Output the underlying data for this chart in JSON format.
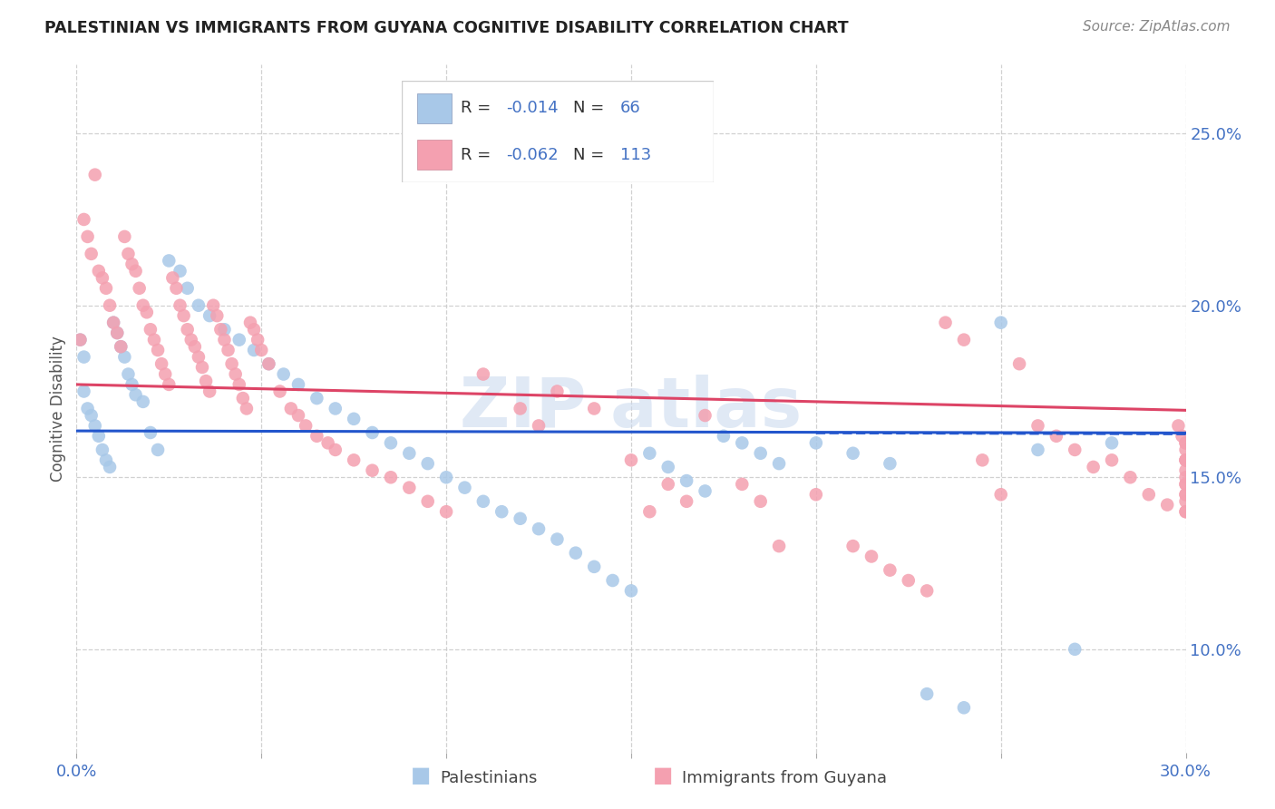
{
  "title": "PALESTINIAN VS IMMIGRANTS FROM GUYANA COGNITIVE DISABILITY CORRELATION CHART",
  "source": "Source: ZipAtlas.com",
  "ylabel": "Cognitive Disability",
  "xlim": [
    0.0,
    0.3
  ],
  "ylim": [
    0.07,
    0.27
  ],
  "yticks": [
    0.1,
    0.15,
    0.2,
    0.25
  ],
  "ytick_labels": [
    "10.0%",
    "15.0%",
    "20.0%",
    "25.0%"
  ],
  "xticks": [
    0.0,
    0.05,
    0.1,
    0.15,
    0.2,
    0.25,
    0.3
  ],
  "legend_R1": "-0.014",
  "legend_N1": "66",
  "legend_R2": "-0.062",
  "legend_N2": "113",
  "color_blue": "#a8c8e8",
  "color_pink": "#f4a0b0",
  "line_blue": "#2255cc",
  "line_pink": "#dd4466",
  "label1": "Palestinians",
  "label2": "Immigrants from Guyana",
  "blue_x": [
    0.001,
    0.002,
    0.002,
    0.003,
    0.004,
    0.005,
    0.006,
    0.007,
    0.008,
    0.009,
    0.01,
    0.011,
    0.012,
    0.013,
    0.014,
    0.015,
    0.016,
    0.018,
    0.02,
    0.022,
    0.025,
    0.028,
    0.03,
    0.033,
    0.036,
    0.04,
    0.044,
    0.048,
    0.052,
    0.056,
    0.06,
    0.065,
    0.07,
    0.075,
    0.08,
    0.085,
    0.09,
    0.095,
    0.1,
    0.105,
    0.11,
    0.115,
    0.12,
    0.125,
    0.13,
    0.135,
    0.14,
    0.145,
    0.15,
    0.155,
    0.16,
    0.165,
    0.17,
    0.175,
    0.18,
    0.185,
    0.19,
    0.2,
    0.21,
    0.22,
    0.23,
    0.24,
    0.25,
    0.26,
    0.27,
    0.28
  ],
  "blue_y": [
    0.19,
    0.185,
    0.175,
    0.17,
    0.168,
    0.165,
    0.162,
    0.158,
    0.155,
    0.153,
    0.195,
    0.192,
    0.188,
    0.185,
    0.18,
    0.177,
    0.174,
    0.172,
    0.163,
    0.158,
    0.213,
    0.21,
    0.205,
    0.2,
    0.197,
    0.193,
    0.19,
    0.187,
    0.183,
    0.18,
    0.177,
    0.173,
    0.17,
    0.167,
    0.163,
    0.16,
    0.157,
    0.154,
    0.15,
    0.147,
    0.143,
    0.14,
    0.138,
    0.135,
    0.132,
    0.128,
    0.124,
    0.12,
    0.117,
    0.157,
    0.153,
    0.149,
    0.146,
    0.162,
    0.16,
    0.157,
    0.154,
    0.16,
    0.157,
    0.154,
    0.087,
    0.083,
    0.195,
    0.158,
    0.1,
    0.16
  ],
  "pink_x": [
    0.001,
    0.002,
    0.003,
    0.004,
    0.005,
    0.006,
    0.007,
    0.008,
    0.009,
    0.01,
    0.011,
    0.012,
    0.013,
    0.014,
    0.015,
    0.016,
    0.017,
    0.018,
    0.019,
    0.02,
    0.021,
    0.022,
    0.023,
    0.024,
    0.025,
    0.026,
    0.027,
    0.028,
    0.029,
    0.03,
    0.031,
    0.032,
    0.033,
    0.034,
    0.035,
    0.036,
    0.037,
    0.038,
    0.039,
    0.04,
    0.041,
    0.042,
    0.043,
    0.044,
    0.045,
    0.046,
    0.047,
    0.048,
    0.049,
    0.05,
    0.052,
    0.055,
    0.058,
    0.06,
    0.062,
    0.065,
    0.068,
    0.07,
    0.075,
    0.08,
    0.085,
    0.09,
    0.095,
    0.1,
    0.11,
    0.12,
    0.125,
    0.13,
    0.14,
    0.15,
    0.155,
    0.16,
    0.165,
    0.17,
    0.18,
    0.185,
    0.19,
    0.2,
    0.21,
    0.215,
    0.22,
    0.225,
    0.23,
    0.235,
    0.24,
    0.245,
    0.25,
    0.255,
    0.26,
    0.265,
    0.27,
    0.275,
    0.28,
    0.285,
    0.29,
    0.295,
    0.298,
    0.299,
    0.3,
    0.3,
    0.3,
    0.3,
    0.3,
    0.3,
    0.3,
    0.3,
    0.3,
    0.3,
    0.3,
    0.3,
    0.3,
    0.3,
    0.3
  ],
  "pink_y": [
    0.19,
    0.225,
    0.22,
    0.215,
    0.238,
    0.21,
    0.208,
    0.205,
    0.2,
    0.195,
    0.192,
    0.188,
    0.22,
    0.215,
    0.212,
    0.21,
    0.205,
    0.2,
    0.198,
    0.193,
    0.19,
    0.187,
    0.183,
    0.18,
    0.177,
    0.208,
    0.205,
    0.2,
    0.197,
    0.193,
    0.19,
    0.188,
    0.185,
    0.182,
    0.178,
    0.175,
    0.2,
    0.197,
    0.193,
    0.19,
    0.187,
    0.183,
    0.18,
    0.177,
    0.173,
    0.17,
    0.195,
    0.193,
    0.19,
    0.187,
    0.183,
    0.175,
    0.17,
    0.168,
    0.165,
    0.162,
    0.16,
    0.158,
    0.155,
    0.152,
    0.15,
    0.147,
    0.143,
    0.14,
    0.18,
    0.17,
    0.165,
    0.175,
    0.17,
    0.155,
    0.14,
    0.148,
    0.143,
    0.168,
    0.148,
    0.143,
    0.13,
    0.145,
    0.13,
    0.127,
    0.123,
    0.12,
    0.117,
    0.195,
    0.19,
    0.155,
    0.145,
    0.183,
    0.165,
    0.162,
    0.158,
    0.153,
    0.155,
    0.15,
    0.145,
    0.142,
    0.165,
    0.162,
    0.155,
    0.148,
    0.145,
    0.143,
    0.14,
    0.148,
    0.152,
    0.158,
    0.16,
    0.155,
    0.15,
    0.145,
    0.14,
    0.155,
    0.16
  ]
}
